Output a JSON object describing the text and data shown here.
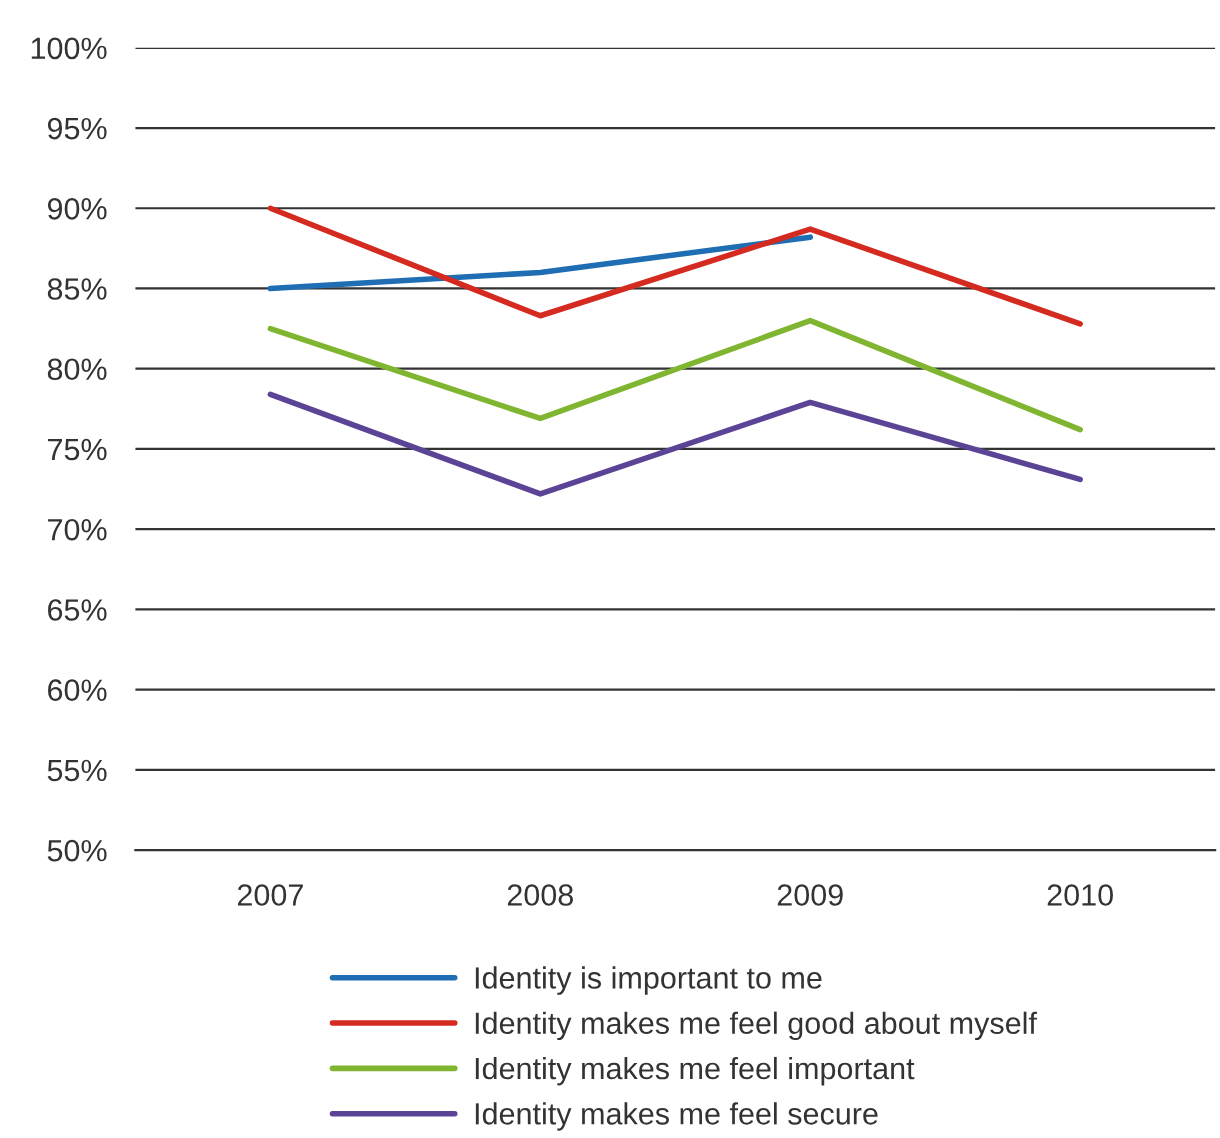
{
  "chart_data": {
    "type": "line",
    "categories": [
      "2007",
      "2008",
      "2009",
      "2010"
    ],
    "series": [
      {
        "name": "Identity is important to me",
        "color": "#1f6db3",
        "values": [
          85.0,
          86.0,
          88.2,
          null
        ]
      },
      {
        "name": "Identity makes me feel good about myself",
        "color": "#d42a20",
        "values": [
          90.0,
          83.3,
          88.7,
          82.8
        ]
      },
      {
        "name": "Identity makes me feel important",
        "color": "#80b531",
        "values": [
          82.5,
          76.9,
          83.0,
          76.2
        ]
      },
      {
        "name": "Identity makes me feel secure",
        "color": "#5b4496",
        "values": [
          78.4,
          72.2,
          77.9,
          73.1
        ]
      }
    ],
    "ylim": [
      50,
      100
    ],
    "yticks": [
      {
        "value": 50,
        "label": "50%"
      },
      {
        "value": 55,
        "label": "55%"
      },
      {
        "value": 60,
        "label": "60%"
      },
      {
        "value": 65,
        "label": "65%"
      },
      {
        "value": 70,
        "label": "70%"
      },
      {
        "value": 75,
        "label": "75%"
      },
      {
        "value": 80,
        "label": "80%"
      },
      {
        "value": 85,
        "label": "85%"
      },
      {
        "value": 90,
        "label": "90%"
      },
      {
        "value": 95,
        "label": "95%"
      },
      {
        "value": 100,
        "label": "100%"
      }
    ],
    "grid": "y",
    "legend": "bottom",
    "marker": "none",
    "line_style": "solid"
  }
}
